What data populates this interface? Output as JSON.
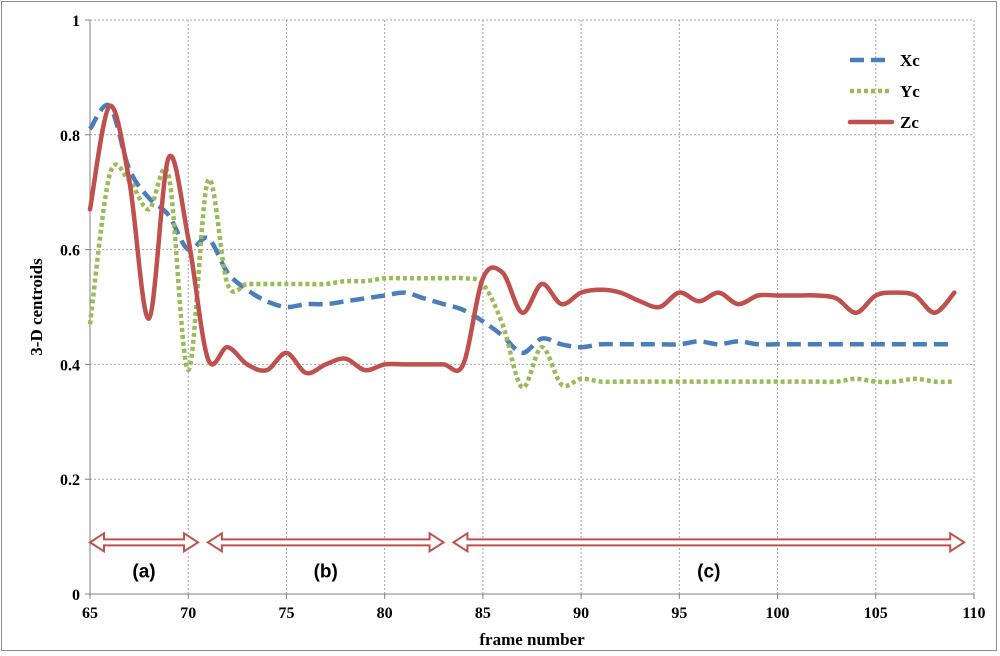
{
  "chart_data": {
    "type": "line",
    "xlabel": "frame number",
    "ylabel": "3-D centroids",
    "xlim": [
      65,
      110
    ],
    "ylim": [
      0,
      1
    ],
    "xticks": [
      "65",
      "70",
      "75",
      "80",
      "85",
      "90",
      "95",
      "100",
      "105",
      "110"
    ],
    "yticks": [
      "0",
      "0.2",
      "0.4",
      "0.6",
      "0.8",
      "1"
    ],
    "grid": "dotted",
    "legend_position": "top-right",
    "x": [
      65,
      66,
      67,
      68,
      69,
      70,
      71,
      72,
      73,
      74,
      75,
      76,
      77,
      78,
      79,
      80,
      81,
      82,
      83,
      84,
      85,
      86,
      87,
      88,
      89,
      90,
      91,
      92,
      93,
      94,
      95,
      96,
      97,
      98,
      99,
      100,
      101,
      102,
      103,
      104,
      105,
      106,
      107,
      108,
      109
    ],
    "series": [
      {
        "name": "Xc",
        "color": "#4a7ebb",
        "style": "dashed",
        "values": [
          0.81,
          0.85,
          0.74,
          0.69,
          0.66,
          0.6,
          0.62,
          0.56,
          0.53,
          0.51,
          0.5,
          0.505,
          0.505,
          0.51,
          0.515,
          0.52,
          0.525,
          0.515,
          0.505,
          0.495,
          0.475,
          0.45,
          0.42,
          0.445,
          0.435,
          0.43,
          0.435,
          0.435,
          0.435,
          0.435,
          0.435,
          0.44,
          0.435,
          0.44,
          0.435,
          0.435,
          0.435,
          0.435,
          0.435,
          0.435,
          0.435,
          0.435,
          0.435,
          0.435,
          0.435
        ]
      },
      {
        "name": "Yc",
        "color": "#9bbb59",
        "style": "dotted",
        "values": [
          0.47,
          0.73,
          0.72,
          0.67,
          0.73,
          0.39,
          0.72,
          0.54,
          0.54,
          0.54,
          0.54,
          0.54,
          0.54,
          0.545,
          0.545,
          0.55,
          0.55,
          0.55,
          0.55,
          0.55,
          0.54,
          0.47,
          0.36,
          0.43,
          0.365,
          0.375,
          0.37,
          0.37,
          0.37,
          0.37,
          0.37,
          0.37,
          0.37,
          0.37,
          0.37,
          0.37,
          0.37,
          0.37,
          0.37,
          0.375,
          0.37,
          0.37,
          0.375,
          0.37,
          0.37
        ]
      },
      {
        "name": "Zc",
        "color": "#c0504d",
        "style": "solid",
        "values": [
          0.67,
          0.85,
          0.72,
          0.48,
          0.76,
          0.62,
          0.41,
          0.43,
          0.4,
          0.39,
          0.42,
          0.385,
          0.4,
          0.41,
          0.39,
          0.4,
          0.4,
          0.4,
          0.4,
          0.4,
          0.55,
          0.56,
          0.49,
          0.54,
          0.505,
          0.525,
          0.53,
          0.525,
          0.51,
          0.5,
          0.525,
          0.51,
          0.525,
          0.505,
          0.52,
          0.52,
          0.52,
          0.52,
          0.515,
          0.49,
          0.52,
          0.525,
          0.52,
          0.49,
          0.525
        ]
      }
    ],
    "annotations": [
      {
        "label": "(a)",
        "from": 65,
        "to": 70.5,
        "y": 0.09
      },
      {
        "label": "(b)",
        "from": 71,
        "to": 83,
        "y": 0.09
      },
      {
        "label": "(c)",
        "from": 83.5,
        "to": 109.5,
        "y": 0.09
      }
    ],
    "annotation_color": "#c0504d"
  }
}
